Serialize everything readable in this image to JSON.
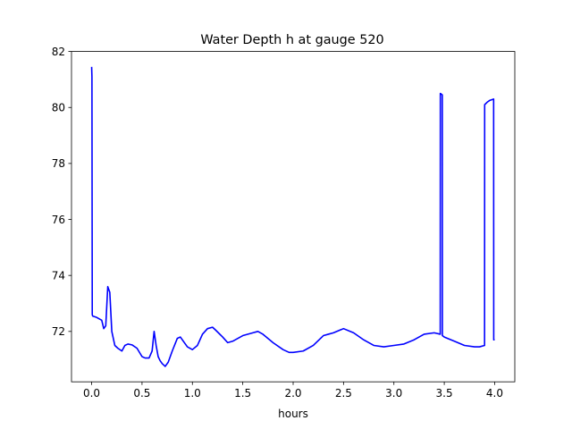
{
  "chart_data": {
    "type": "line",
    "title": "Water Depth h at gauge 520",
    "xlabel": "hours",
    "ylabel": "",
    "xlim": [
      -0.2,
      4.2
    ],
    "ylim": [
      70.2,
      82
    ],
    "xticks": [
      0.0,
      0.5,
      1.0,
      1.5,
      2.0,
      2.5,
      3.0,
      3.5,
      4.0
    ],
    "xtick_labels": [
      "0.0",
      "0.5",
      "1.0",
      "1.5",
      "2.0",
      "2.5",
      "3.0",
      "3.5",
      "4.0"
    ],
    "yticks": [
      72,
      74,
      76,
      78,
      80,
      82
    ],
    "ytick_labels": [
      "72",
      "74",
      "76",
      "78",
      "80",
      "82"
    ],
    "grid": false,
    "series": [
      {
        "color": "#0000ff",
        "x": [
          0.0,
          0.003,
          0.006,
          0.01,
          0.05,
          0.1,
          0.12,
          0.14,
          0.16,
          0.18,
          0.2,
          0.23,
          0.26,
          0.3,
          0.33,
          0.36,
          0.4,
          0.45,
          0.5,
          0.53,
          0.57,
          0.6,
          0.62,
          0.64,
          0.66,
          0.68,
          0.7,
          0.73,
          0.76,
          0.8,
          0.85,
          0.88,
          0.9,
          0.95,
          1.0,
          1.05,
          1.1,
          1.15,
          1.2,
          1.23,
          1.3,
          1.35,
          1.4,
          1.5,
          1.6,
          1.65,
          1.7,
          1.8,
          1.9,
          1.96,
          2.0,
          2.1,
          2.2,
          2.3,
          2.35,
          2.4,
          2.5,
          2.6,
          2.7,
          2.8,
          2.9,
          3.0,
          3.1,
          3.2,
          3.3,
          3.4,
          3.46,
          3.461,
          3.48,
          3.481,
          3.5,
          3.6,
          3.7,
          3.8,
          3.85,
          3.9,
          3.901,
          3.93,
          3.95,
          3.99,
          3.991,
          4.0
        ],
        "y": [
          81.45,
          81.1,
          72.6,
          72.55,
          72.5,
          72.4,
          72.1,
          72.2,
          73.6,
          73.4,
          72.0,
          71.5,
          71.4,
          71.3,
          71.5,
          71.55,
          71.52,
          71.4,
          71.1,
          71.05,
          71.05,
          71.3,
          72.0,
          71.5,
          71.1,
          70.95,
          70.85,
          70.75,
          70.9,
          71.3,
          71.75,
          71.8,
          71.7,
          71.45,
          71.35,
          71.5,
          71.9,
          72.1,
          72.15,
          72.05,
          71.8,
          71.6,
          71.65,
          71.85,
          71.95,
          72.0,
          71.9,
          71.6,
          71.35,
          71.25,
          71.25,
          71.3,
          71.5,
          71.85,
          71.9,
          71.95,
          72.1,
          71.95,
          71.7,
          71.5,
          71.45,
          71.5,
          71.55,
          71.7,
          71.9,
          71.95,
          71.9,
          80.5,
          80.45,
          71.85,
          71.8,
          71.65,
          71.5,
          71.45,
          71.45,
          71.5,
          80.1,
          80.2,
          80.25,
          80.3,
          71.7,
          71.7
        ]
      }
    ]
  }
}
